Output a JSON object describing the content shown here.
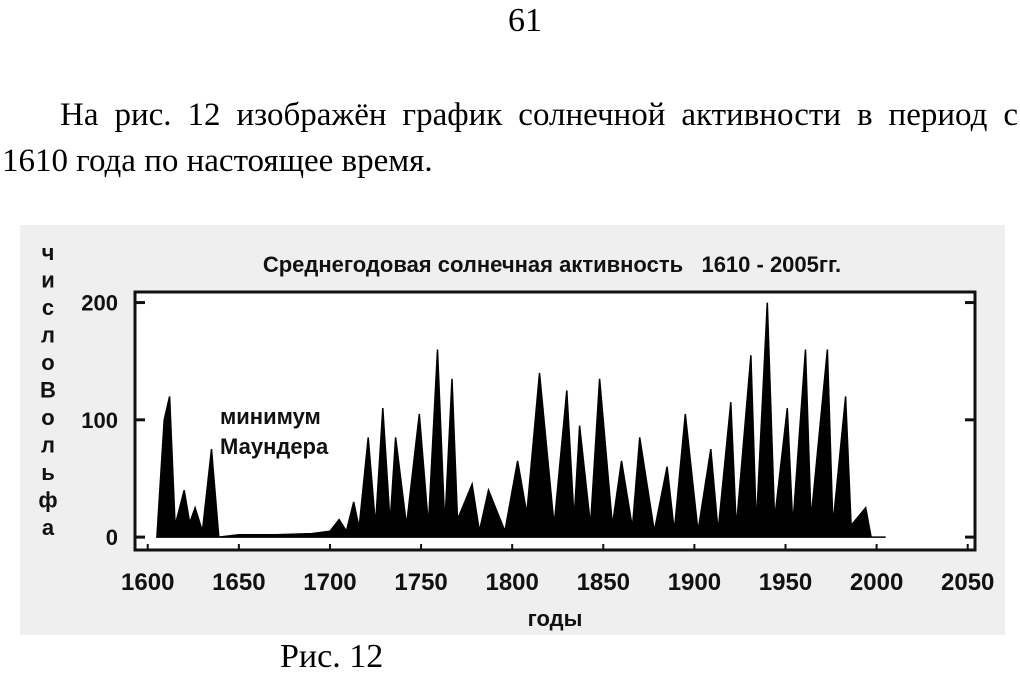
{
  "page_number": "61",
  "paragraph": "На рис. 12 изображён график солнечной активности в период с 1610 года по настоящее время.",
  "caption": "Рис. 12",
  "chart_data": {
    "type": "area",
    "title": "Среднегодовая солнечная активность   1610 - 2005гг.",
    "xlabel": "годы",
    "ylabel": "числоВольфа",
    "annotation": [
      "минимум",
      "Маундера"
    ],
    "color": "#000000",
    "x": [
      1605,
      1609,
      1612,
      1615,
      1620,
      1623,
      1626,
      1630,
      1635,
      1639,
      1650,
      1670,
      1690,
      1700,
      1705,
      1709,
      1713,
      1716,
      1721,
      1725,
      1729,
      1733,
      1736,
      1742,
      1749,
      1754,
      1759,
      1763,
      1767,
      1770,
      1774,
      1778,
      1782,
      1787,
      1796,
      1803,
      1808,
      1815,
      1823,
      1830,
      1834,
      1837,
      1843,
      1848,
      1855,
      1860,
      1866,
      1870,
      1878,
      1885,
      1889,
      1895,
      1902,
      1909,
      1913,
      1920,
      1923,
      1931,
      1934,
      1940,
      1944,
      1951,
      1954,
      1961,
      1964,
      1973,
      1976,
      1983,
      1986,
      1994,
      1997,
      2004,
      2005
    ],
    "values": [
      0,
      100,
      120,
      10,
      40,
      12,
      25,
      5,
      75,
      0,
      2,
      2,
      3,
      5,
      15,
      5,
      30,
      8,
      85,
      10,
      110,
      12,
      85,
      10,
      105,
      10,
      160,
      10,
      135,
      15,
      30,
      45,
      5,
      40,
      5,
      65,
      20,
      140,
      10,
      125,
      15,
      95,
      10,
      135,
      10,
      65,
      8,
      85,
      5,
      60,
      5,
      105,
      5,
      75,
      5,
      115,
      8,
      155,
      10,
      200,
      15,
      110,
      10,
      160,
      15,
      160,
      10,
      120,
      10,
      25,
      0,
      0,
      0
    ],
    "xlim": [
      1593,
      2054
    ],
    "ylim": [
      -11,
      209
    ],
    "xticks": [
      1600,
      1650,
      1700,
      1750,
      1800,
      1850,
      1900,
      1950,
      2000,
      2050
    ],
    "yticks": [
      0,
      100,
      200
    ]
  }
}
